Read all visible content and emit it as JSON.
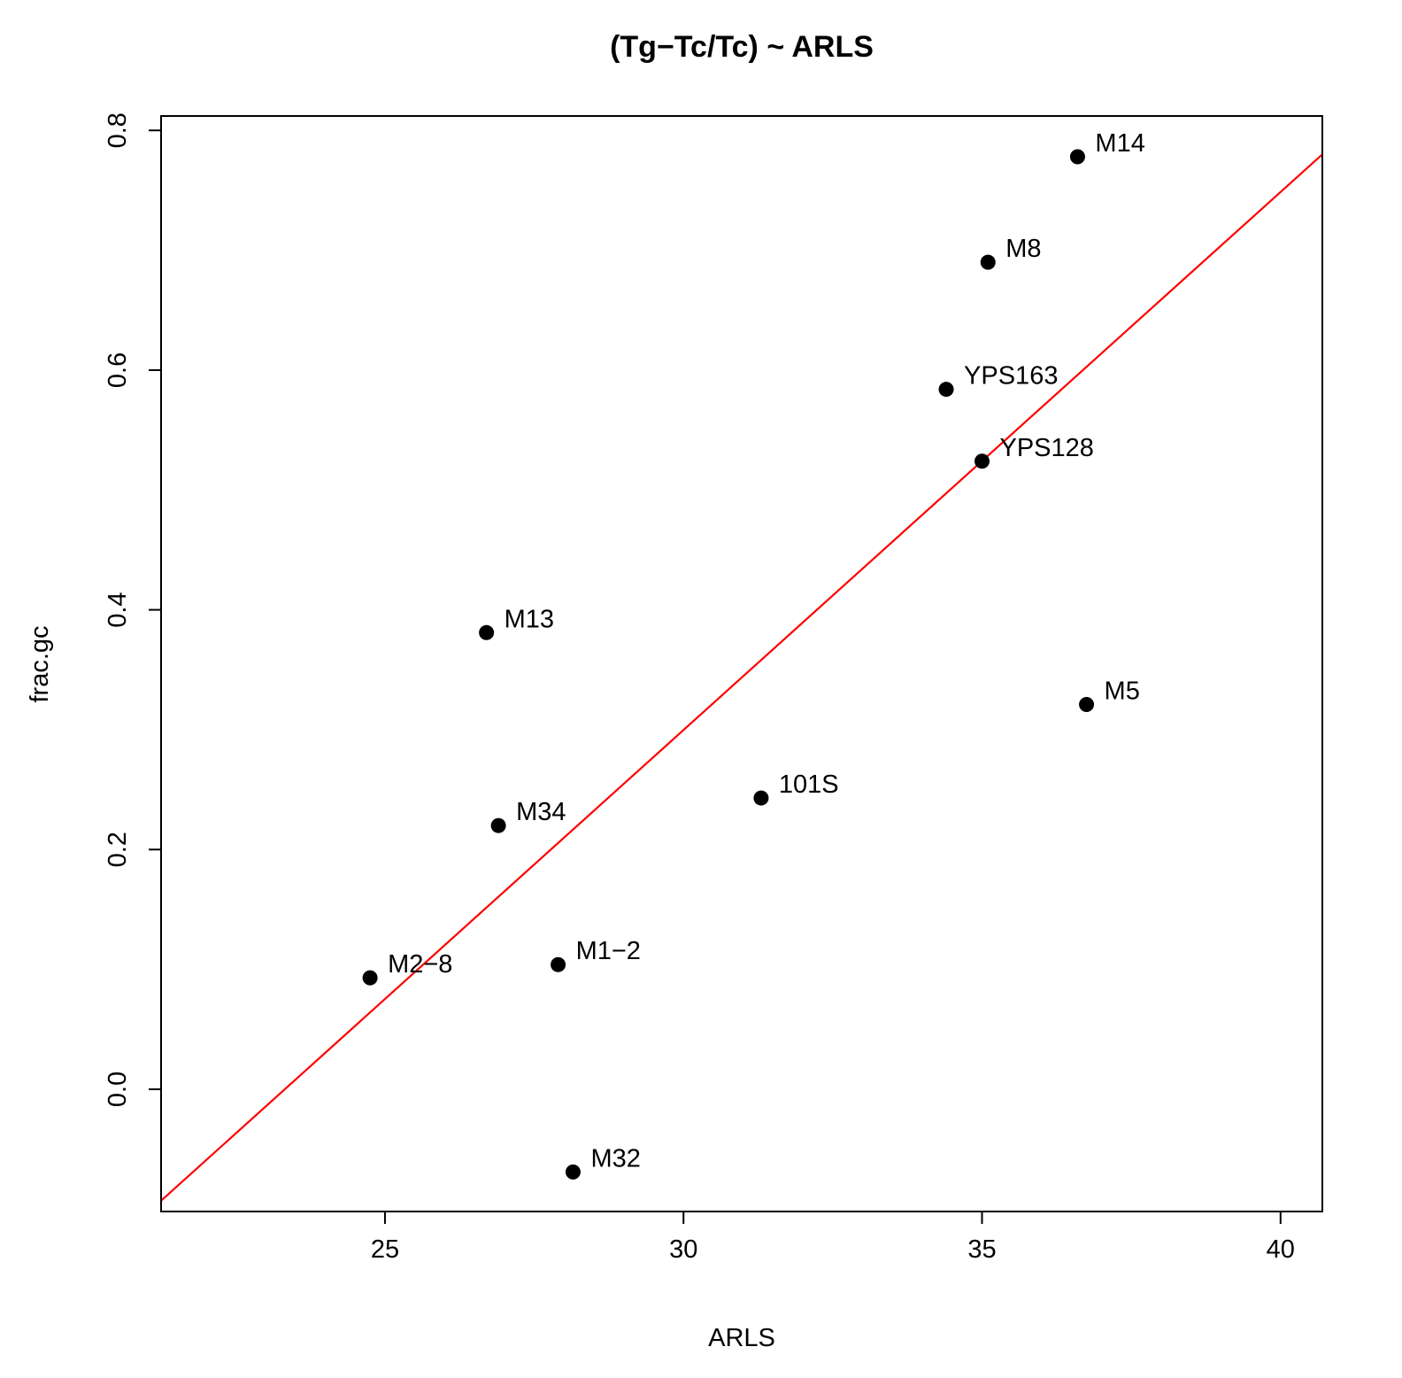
{
  "chart_data": {
    "type": "scatter",
    "title": "(Tg−Tc/Tc) ~ ARLS",
    "xlabel": "ARLS",
    "ylabel": "frac.gc",
    "xlim": [
      21.25,
      40.7
    ],
    "ylim": [
      -0.102,
      0.812
    ],
    "x_ticks": [
      25,
      30,
      35,
      40
    ],
    "y_ticks": [
      0.0,
      0.2,
      0.4,
      0.6,
      0.8
    ],
    "x_tick_labels": [
      "25",
      "30",
      "35",
      "40"
    ],
    "y_tick_labels": [
      "0.0",
      "0.2",
      "0.4",
      "0.6",
      "0.8"
    ],
    "grid": false,
    "point_color": "#000000",
    "points": [
      {
        "label": "M14",
        "x": 36.6,
        "y": 0.778
      },
      {
        "label": "M8",
        "x": 35.1,
        "y": 0.69
      },
      {
        "label": "YPS163",
        "x": 34.4,
        "y": 0.584
      },
      {
        "label": "YPS128",
        "x": 35.0,
        "y": 0.524
      },
      {
        "label": "M13",
        "x": 26.7,
        "y": 0.381
      },
      {
        "label": "M5",
        "x": 36.75,
        "y": 0.321
      },
      {
        "label": "101S",
        "x": 31.3,
        "y": 0.243
      },
      {
        "label": "M34",
        "x": 26.9,
        "y": 0.22
      },
      {
        "label": "M1−2",
        "x": 27.9,
        "y": 0.104
      },
      {
        "label": "M2−8",
        "x": 24.75,
        "y": 0.093
      },
      {
        "label": "M32",
        "x": 28.15,
        "y": -0.069
      }
    ],
    "regression_line": {
      "color": "#ff0000",
      "x": [
        21.25,
        40.7
      ],
      "y": [
        -0.093,
        0.78
      ]
    }
  }
}
